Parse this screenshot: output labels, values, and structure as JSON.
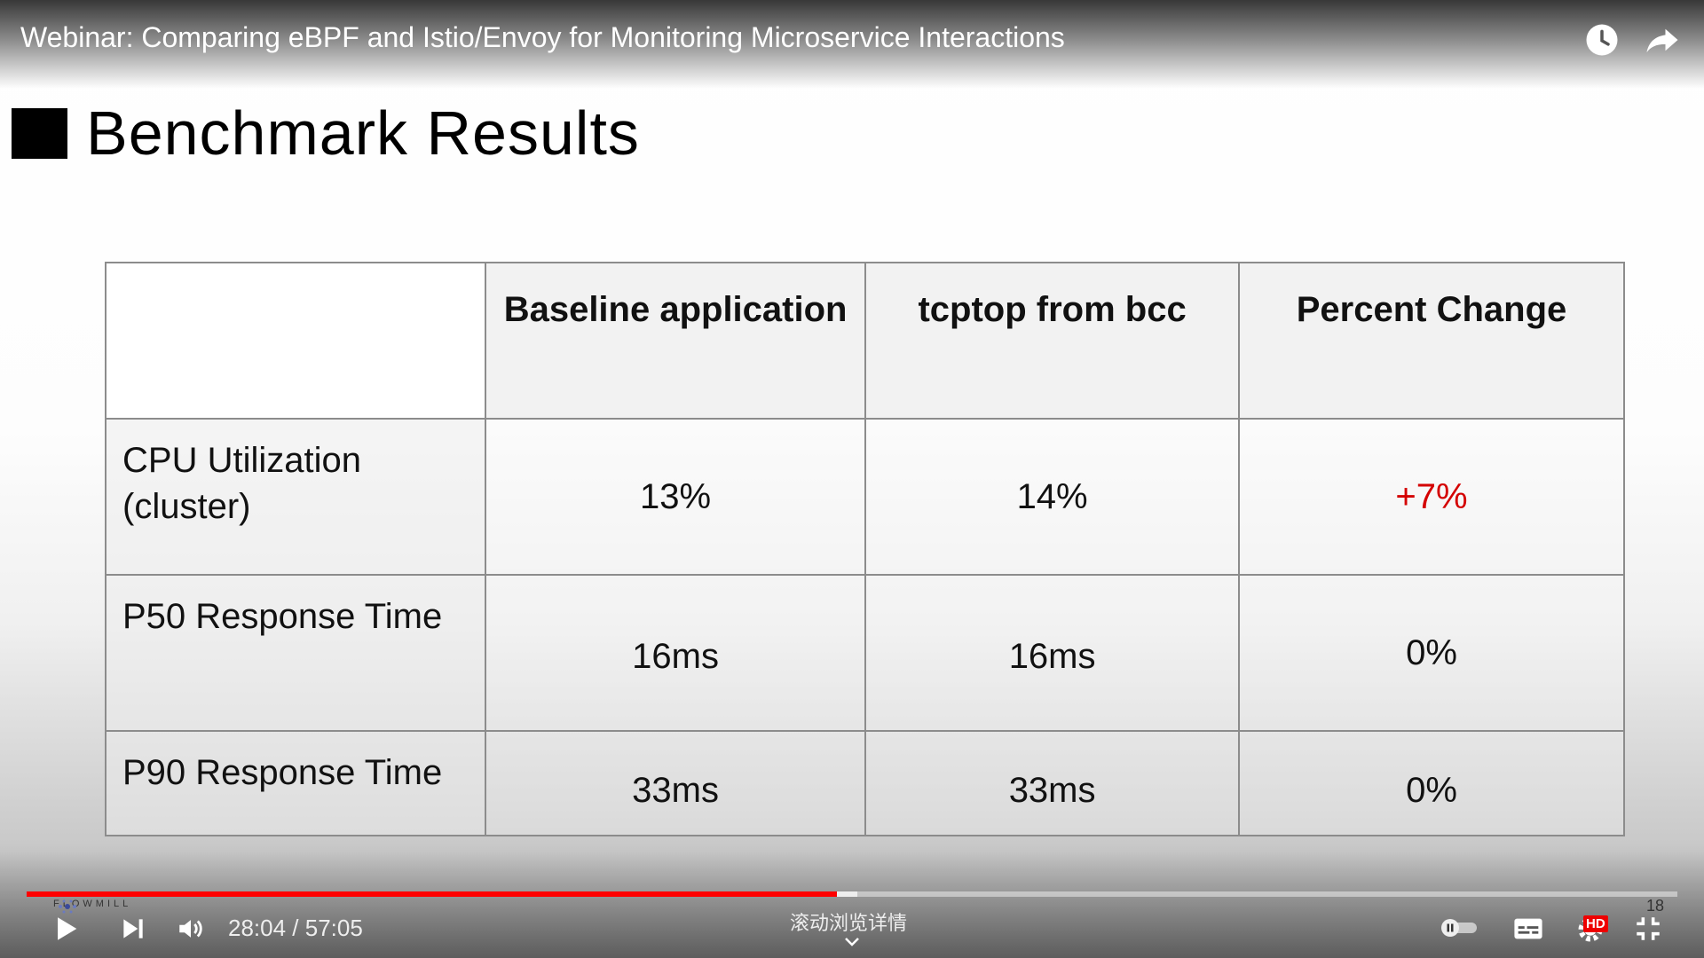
{
  "video": {
    "title": "Webinar: Comparing eBPF and Istio/Envoy for Monitoring Microservice Interactions",
    "current_time": "28:04",
    "duration": "57:05",
    "time_display": "28:04 / 57:05",
    "progress_fraction": 0.491,
    "buffered_fraction": 0.503,
    "scroll_hint": "滚动浏览详情",
    "brand_watermark": "FLOWMILL",
    "counter": "18",
    "hd_badge": "HD",
    "accent_color": "#ff0000"
  },
  "top_icons": [
    "watch-later-icon",
    "share-icon"
  ],
  "slide": {
    "title": "Benchmark Results",
    "table": {
      "headers": [
        "",
        "Baseline application",
        "tcptop from bcc",
        "Percent Change"
      ],
      "rows": [
        {
          "label": "CPU Utilization (cluster)",
          "baseline": "13%",
          "tcptop": "14%",
          "change": "+7%"
        },
        {
          "label": "P50 Response Time",
          "baseline": "16ms",
          "tcptop": "16ms",
          "change": "0%"
        },
        {
          "label": "P90 Response Time",
          "baseline": "33ms",
          "tcptop": "33ms",
          "change": "0%"
        }
      ],
      "highlight_color": "#d40000"
    }
  },
  "controls": [
    "play-icon",
    "next-icon",
    "volume-icon",
    "autoplay-toggle",
    "subtitles-icon",
    "settings-icon",
    "exit-fullscreen-icon"
  ]
}
